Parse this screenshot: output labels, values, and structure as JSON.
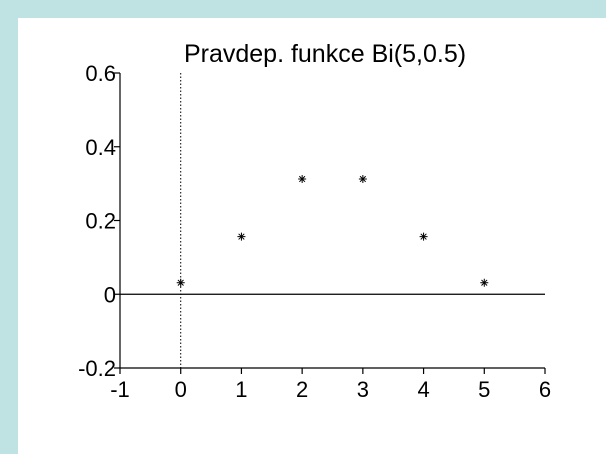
{
  "chart_data": {
    "type": "scatter",
    "title": "Pravdep. funkce Bi(5,0.5)",
    "xlabel": "",
    "ylabel": "",
    "xlim": [
      -1,
      6
    ],
    "ylim": [
      -0.2,
      0.6
    ],
    "x_ticks": [
      -1,
      0,
      1,
      2,
      3,
      4,
      5,
      6
    ],
    "x_tick_labels": [
      "-1",
      "0",
      "1",
      "2",
      "3",
      "4",
      "5",
      "6"
    ],
    "y_ticks": [
      -0.2,
      0,
      0.2,
      0.4,
      0.6
    ],
    "y_tick_labels": [
      "-0.2",
      "0",
      "0.2",
      "0.4",
      "0.6"
    ],
    "marker": "*",
    "grid": false,
    "reference_lines": {
      "horizontal_at_y": 0,
      "vertical_dotted_at_x": 0
    },
    "series": [
      {
        "x": [
          0,
          1,
          2,
          3,
          4,
          5
        ],
        "y": [
          0.03125,
          0.15625,
          0.3125,
          0.3125,
          0.15625,
          0.03125
        ]
      }
    ]
  },
  "colors": {
    "frame_background": "#bfe3e3",
    "plot_background": "#ffffff",
    "axis": "#000000",
    "marker": "#000000"
  }
}
